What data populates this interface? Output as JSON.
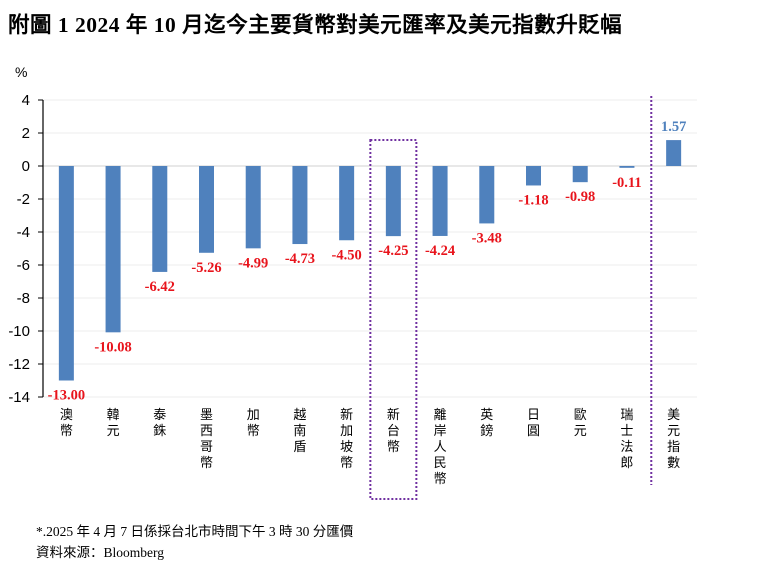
{
  "chart_data": {
    "type": "bar",
    "title": "附圖 1 2024 年 10 月迄今主要貨幣對美元匯率及美元指數升貶幅",
    "ylabel": "%",
    "xlabel": "",
    "ylim": [
      -14,
      4
    ],
    "yticks": [
      4,
      2,
      0,
      -2,
      -4,
      -6,
      -8,
      -10,
      -12,
      -14
    ],
    "grid": true,
    "categories": [
      "澳幣",
      "韓元",
      "泰銖",
      "墨西哥幣",
      "加幣",
      "越南盾",
      "新加坡幣",
      "新台幣",
      "離岸人民幣",
      "英鎊",
      "日圓",
      "歐元",
      "瑞士法郎",
      "美元指數"
    ],
    "values": [
      -13.0,
      -10.08,
      -6.42,
      -5.26,
      -4.99,
      -4.73,
      -4.5,
      -4.25,
      -4.24,
      -3.48,
      -1.18,
      -0.98,
      -0.11,
      1.57
    ],
    "data_labels": [
      "-13.00",
      "-10.08",
      "-6.42",
      "-5.26",
      "-4.99",
      "-4.73",
      "-4.50",
      "-4.25",
      "-4.24",
      "-3.48",
      "-1.18",
      "-0.98",
      "-0.11",
      "1.57"
    ],
    "highlighted_category": "新台幣",
    "separator_before_category": "美元指數",
    "colors": {
      "bar": "#4F81BD",
      "negative_label": "#E8141C",
      "positive_label": "#4F81BD",
      "highlight_border": "#7030A0",
      "gridline": "#EDEDED",
      "zero_line": "#D0D0D0"
    }
  },
  "footer": {
    "note": "*.2025 年 4 月 7 日係採台北市時間下午 3 時 30 分匯價",
    "source": "資料來源：Bloomberg"
  }
}
